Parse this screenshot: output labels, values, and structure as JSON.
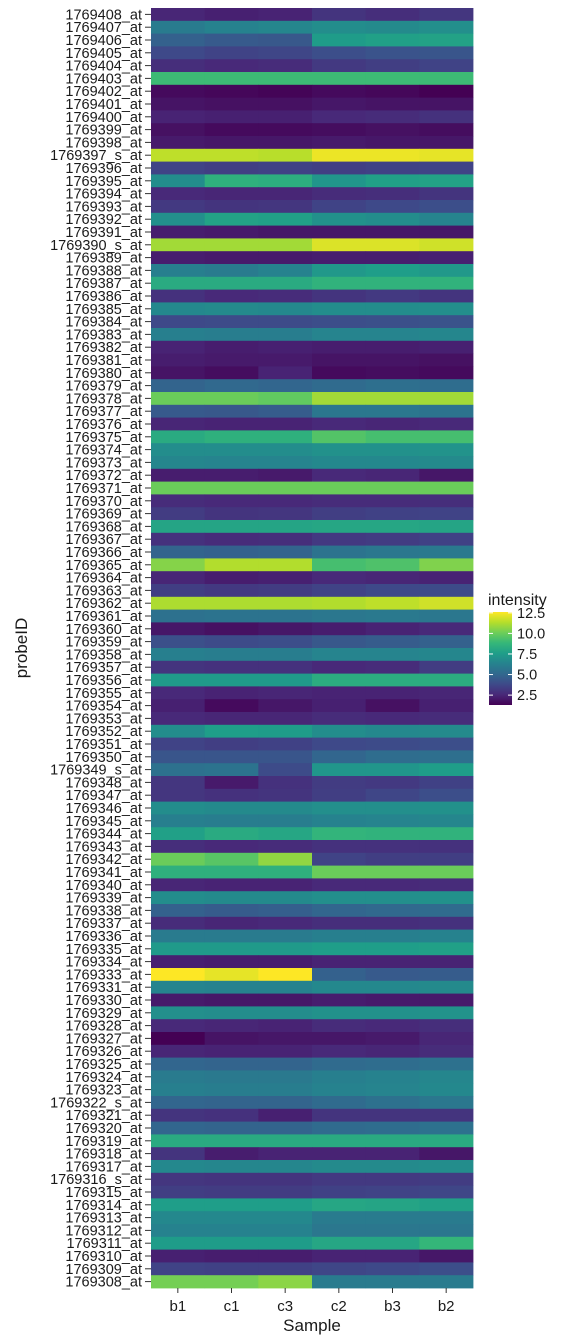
{
  "chart_data": {
    "type": "heatmap",
    "xlabel": "Sample",
    "ylabel": "probeID",
    "x": [
      "b1",
      "c1",
      "c3",
      "c2",
      "b3",
      "b2"
    ],
    "y": [
      "1769408_at",
      "1769407_at",
      "1769406_at",
      "1769405_at",
      "1769404_at",
      "1769403_at",
      "1769402_at",
      "1769401_at",
      "1769400_at",
      "1769399_at",
      "1769398_at",
      "1769397_s_at",
      "1769396_at",
      "1769395_at",
      "1769394_at",
      "1769393_at",
      "1769392_at",
      "1769391_at",
      "1769390_s_at",
      "1769389_at",
      "1769388_at",
      "1769387_at",
      "1769386_at",
      "1769385_at",
      "1769384_at",
      "1769383_at",
      "1769382_at",
      "1769381_at",
      "1769380_at",
      "1769379_at",
      "1769378_at",
      "1769377_at",
      "1769376_at",
      "1769375_at",
      "1769374_at",
      "1769373_at",
      "1769372_at",
      "1769371_at",
      "1769370_at",
      "1769369_at",
      "1769368_at",
      "1769367_at",
      "1769366_at",
      "1769365_at",
      "1769364_at",
      "1769363_at",
      "1769362_at",
      "1769361_at",
      "1769360_at",
      "1769359_at",
      "1769358_at",
      "1769357_at",
      "1769356_at",
      "1769355_at",
      "1769354_at",
      "1769353_at",
      "1769352_at",
      "1769351_at",
      "1769350_at",
      "1769349_s_at",
      "1769348_at",
      "1769347_at",
      "1769346_at",
      "1769345_at",
      "1769344_at",
      "1769343_at",
      "1769342_at",
      "1769341_at",
      "1769340_at",
      "1769339_at",
      "1769338_at",
      "1769337_at",
      "1769336_at",
      "1769335_at",
      "1769334_at",
      "1769333_at",
      "1769331_at",
      "1769330_at",
      "1769329_at",
      "1769328_at",
      "1769327_at",
      "1769326_at",
      "1769325_at",
      "1769324_at",
      "1769323_at",
      "1769322_s_at",
      "1769321_at",
      "1769320_at",
      "1769319_at",
      "1769318_at",
      "1769317_at",
      "1769316_s_at",
      "1769315_at",
      "1769314_at",
      "1769313_at",
      "1769312_at",
      "1769311_at",
      "1769310_at",
      "1769309_at",
      "1769308_at"
    ],
    "values": [
      [
        2.5,
        2.3,
        2.4,
        3.0,
        2.8,
        3.1
      ],
      [
        6.0,
        6.3,
        6.5,
        6.8,
        6.7,
        6.9
      ],
      [
        4.8,
        4.5,
        4.4,
        7.5,
        7.7,
        7.8
      ],
      [
        3.8,
        3.6,
        3.7,
        4.0,
        4.2,
        4.3
      ],
      [
        2.8,
        2.6,
        2.7,
        3.2,
        3.4,
        3.6
      ],
      [
        9.0,
        9.0,
        9.0,
        9.0,
        9.0,
        9.0
      ],
      [
        1.6,
        1.5,
        1.4,
        1.6,
        1.5,
        1.3
      ],
      [
        1.9,
        1.8,
        1.8,
        2.0,
        1.9,
        1.9
      ],
      [
        2.4,
        2.3,
        2.3,
        2.6,
        2.7,
        2.9
      ],
      [
        1.8,
        1.6,
        1.6,
        1.7,
        1.8,
        1.7
      ],
      [
        2.1,
        2.0,
        2.0,
        2.1,
        2.0,
        2.0
      ],
      [
        11.5,
        11.5,
        11.4,
        12.3,
        12.3,
        12.2
      ],
      [
        3.6,
        3.4,
        3.5,
        3.4,
        3.5,
        3.6
      ],
      [
        6.8,
        8.5,
        8.4,
        7.2,
        7.7,
        7.8
      ],
      [
        2.6,
        2.5,
        2.5,
        2.7,
        2.8,
        3.0
      ],
      [
        3.2,
        3.0,
        3.1,
        3.6,
        3.8,
        4.0
      ],
      [
        6.9,
        7.8,
        7.7,
        7.0,
        6.8,
        6.4
      ],
      [
        2.2,
        2.1,
        2.0,
        2.0,
        2.0,
        2.0
      ],
      [
        11.0,
        11.0,
        11.0,
        12.0,
        12.0,
        11.8
      ],
      [
        2.2,
        2.1,
        2.1,
        2.2,
        2.2,
        2.3
      ],
      [
        6.2,
        6.0,
        6.3,
        7.3,
        7.6,
        7.3
      ],
      [
        8.2,
        8.2,
        8.2,
        8.6,
        8.6,
        8.6
      ],
      [
        2.9,
        2.6,
        2.7,
        3.0,
        3.2,
        3.0
      ],
      [
        6.6,
        6.7,
        6.6,
        6.8,
        6.8,
        6.9
      ],
      [
        3.8,
        3.9,
        3.9,
        4.0,
        4.1,
        4.2
      ],
      [
        6.2,
        6.1,
        6.1,
        6.4,
        6.4,
        6.5
      ],
      [
        2.4,
        2.2,
        2.3,
        2.2,
        2.2,
        2.3
      ],
      [
        2.2,
        2.1,
        2.1,
        1.9,
        1.9,
        1.8
      ],
      [
        1.9,
        1.7,
        2.4,
        1.6,
        1.7,
        1.6
      ],
      [
        4.9,
        5.1,
        5.0,
        5.2,
        5.4,
        5.3
      ],
      [
        10.0,
        10.0,
        9.8,
        11.0,
        11.0,
        11.0
      ],
      [
        4.5,
        4.4,
        4.6,
        5.8,
        5.8,
        5.6
      ],
      [
        2.5,
        2.4,
        2.4,
        2.6,
        2.5,
        2.6
      ],
      [
        8.2,
        8.5,
        8.5,
        9.5,
        9.2,
        9.2
      ],
      [
        6.8,
        6.8,
        6.8,
        7.0,
        7.0,
        7.1
      ],
      [
        6.5,
        6.4,
        6.4,
        6.6,
        6.6,
        6.7
      ],
      [
        2.2,
        2.2,
        2.1,
        2.6,
        2.5,
        2.0
      ],
      [
        10.0,
        10.0,
        10.0,
        10.0,
        10.0,
        10.0
      ],
      [
        2.7,
        2.6,
        2.6,
        2.7,
        2.7,
        2.8
      ],
      [
        3.3,
        3.0,
        3.1,
        3.4,
        3.5,
        3.6
      ],
      [
        7.9,
        7.9,
        7.9,
        8.0,
        8.0,
        7.9
      ],
      [
        2.9,
        2.7,
        2.8,
        3.2,
        3.3,
        3.5
      ],
      [
        4.9,
        4.8,
        4.9,
        5.6,
        5.8,
        5.9
      ],
      [
        10.5,
        11.3,
        11.3,
        9.2,
        9.4,
        10.4
      ],
      [
        2.5,
        2.2,
        2.3,
        2.6,
        2.5,
        2.4
      ],
      [
        3.4,
        3.2,
        3.3,
        3.6,
        3.8,
        3.9
      ],
      [
        11.2,
        11.2,
        11.2,
        11.3,
        11.5,
        11.8
      ],
      [
        5.5,
        5.6,
        5.6,
        5.8,
        5.9,
        5.8
      ],
      [
        2.0,
        1.8,
        2.0,
        2.2,
        2.4,
        2.6
      ],
      [
        4.1,
        3.9,
        4.0,
        4.4,
        4.6,
        4.8
      ],
      [
        6.2,
        6.1,
        6.1,
        6.4,
        6.4,
        6.5
      ],
      [
        3.0,
        2.9,
        2.9,
        2.6,
        2.7,
        3.3
      ],
      [
        7.4,
        7.4,
        7.4,
        8.3,
        8.3,
        8.3
      ],
      [
        2.6,
        2.4,
        2.5,
        2.4,
        2.4,
        2.5
      ],
      [
        2.3,
        1.6,
        2.0,
        2.3,
        1.8,
        2.3
      ],
      [
        2.6,
        2.5,
        2.5,
        2.7,
        2.6,
        2.7
      ],
      [
        6.8,
        7.6,
        7.5,
        6.8,
        6.6,
        6.7
      ],
      [
        3.6,
        3.4,
        3.5,
        3.8,
        3.9,
        4.0
      ],
      [
        4.3,
        4.3,
        4.3,
        5.0,
        5.3,
        5.4
      ],
      [
        5.5,
        5.6,
        3.9,
        7.2,
        7.2,
        7.6
      ],
      [
        3.1,
        2.1,
        2.9,
        3.3,
        3.2,
        3.5
      ],
      [
        3.1,
        2.9,
        3.0,
        3.4,
        3.7,
        4.0
      ],
      [
        6.8,
        6.7,
        6.7,
        6.9,
        6.9,
        7.0
      ],
      [
        6.2,
        6.1,
        6.1,
        6.3,
        6.4,
        6.5
      ],
      [
        7.7,
        8.2,
        8.0,
        8.7,
        8.6,
        8.6
      ],
      [
        2.8,
        2.6,
        2.7,
        2.9,
        2.9,
        2.9
      ],
      [
        10.0,
        9.6,
        10.7,
        3.6,
        3.4,
        3.4
      ],
      [
        8.5,
        8.5,
        8.5,
        10.0,
        10.0,
        10.0
      ],
      [
        2.5,
        2.4,
        2.4,
        2.6,
        2.6,
        2.7
      ],
      [
        6.8,
        6.7,
        6.7,
        6.9,
        6.9,
        7.0
      ],
      [
        4.8,
        4.6,
        4.7,
        5.0,
        5.1,
        5.2
      ],
      [
        2.7,
        2.5,
        2.6,
        2.8,
        2.8,
        2.9
      ],
      [
        6.0,
        6.0,
        6.0,
        6.2,
        6.2,
        6.3
      ],
      [
        7.4,
        7.4,
        7.4,
        7.6,
        7.6,
        7.7
      ],
      [
        2.3,
        2.2,
        2.2,
        2.4,
        2.4,
        2.4
      ],
      [
        12.6,
        12.2,
        12.6,
        4.8,
        4.5,
        4.6
      ],
      [
        6.4,
        6.3,
        6.3,
        6.6,
        6.6,
        6.7
      ],
      [
        2.1,
        2.0,
        2.0,
        2.2,
        2.1,
        2.1
      ],
      [
        6.9,
        6.8,
        6.8,
        7.0,
        7.0,
        7.1
      ],
      [
        2.6,
        2.5,
        2.4,
        2.7,
        2.6,
        2.8
      ],
      [
        1.3,
        1.9,
        2.0,
        2.0,
        2.1,
        2.5
      ],
      [
        2.5,
        2.4,
        2.4,
        2.6,
        2.5,
        2.7
      ],
      [
        5.0,
        4.9,
        4.9,
        5.2,
        5.3,
        5.5
      ],
      [
        6.0,
        5.9,
        5.9,
        6.2,
        6.3,
        6.5
      ],
      [
        6.2,
        6.1,
        6.1,
        6.3,
        6.4,
        6.6
      ],
      [
        5.0,
        4.9,
        4.9,
        5.2,
        5.5,
        5.8
      ],
      [
        3.0,
        2.9,
        2.3,
        3.0,
        3.0,
        3.0
      ],
      [
        5.0,
        4.9,
        4.9,
        5.2,
        5.3,
        5.5
      ],
      [
        8.2,
        8.2,
        8.2,
        8.2,
        8.2,
        8.2
      ],
      [
        3.0,
        2.2,
        2.4,
        2.4,
        2.4,
        2.0
      ],
      [
        6.6,
        6.5,
        6.5,
        6.7,
        6.7,
        6.8
      ],
      [
        3.1,
        3.0,
        3.0,
        3.2,
        3.2,
        3.3
      ],
      [
        3.4,
        3.3,
        3.3,
        3.5,
        3.6,
        3.7
      ],
      [
        7.6,
        7.6,
        7.6,
        8.0,
        7.9,
        7.7
      ],
      [
        6.6,
        6.6,
        6.6,
        6.0,
        6.0,
        6.0
      ],
      [
        6.3,
        6.3,
        6.3,
        5.8,
        5.8,
        5.8
      ],
      [
        7.5,
        7.5,
        7.5,
        8.0,
        8.0,
        8.8
      ],
      [
        2.3,
        2.2,
        2.2,
        2.4,
        2.4,
        2.0
      ],
      [
        3.6,
        3.5,
        3.5,
        3.7,
        3.8,
        4.0
      ],
      [
        10.2,
        10.2,
        10.6,
        6.0,
        6.0,
        6.0
      ]
    ],
    "legend": {
      "title": "intensity",
      "ticks": [
        2.5,
        5.0,
        7.5,
        10.0,
        12.5
      ],
      "range": [
        1.3,
        12.6
      ],
      "placement": "right"
    },
    "colormap": [
      "#440154",
      "#482878",
      "#3e4989",
      "#31688e",
      "#26828e",
      "#1f9e89",
      "#35b779",
      "#6ece58",
      "#b5de2b",
      "#fde725"
    ]
  }
}
